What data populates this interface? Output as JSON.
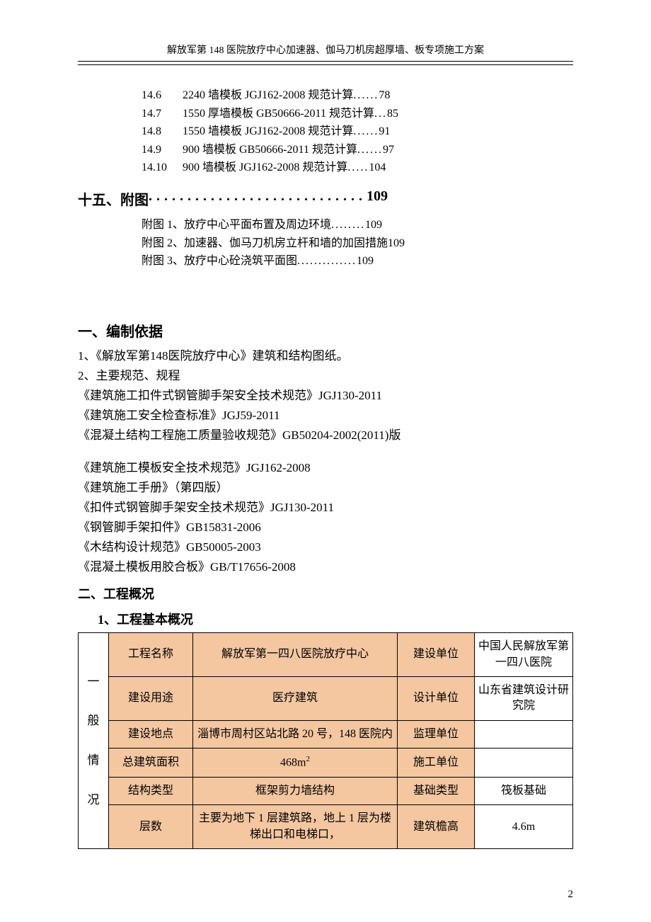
{
  "header": "解放军第 148 医院放疗中心加速器、伽马刀机房超厚墙、板专项施工方案",
  "toc_sub": [
    {
      "num": "14.6",
      "text": "2240 墙模板 JGJ162-2008 规范计算",
      "dots": "......",
      "page": "78"
    },
    {
      "num": "14.7",
      "text": "1550 厚墙模板 GB50666-2011 规范计算",
      "dots": "...",
      "page": "85"
    },
    {
      "num": "14.8",
      "text": "1550 墙模板 JGJ162-2008 规范计算",
      "dots": "......",
      "page": "91"
    },
    {
      "num": "14.9",
      "text": "900 墙模板 GB50666-2011 规范计算",
      "dots": "......",
      "page": "97"
    },
    {
      "num": "14.10",
      "text": "900 墙模板 JGJ162-2008 规范计算",
      "dots": ".....",
      "page": "104"
    }
  ],
  "toc_section": {
    "label": "十五、附图",
    "dots": "............................",
    "page": "109"
  },
  "toc_sub2": [
    {
      "text": "附图 1、放疗中心平面布置及周边环境",
      "dots": "........",
      "page": "109"
    },
    {
      "text": "附图 2、加速器、伽马刀机房立杆和墙的加固措施",
      "dots": "",
      "page": "109"
    },
    {
      "text": "附图 3、放疗中心砼浇筑平面图",
      "dots": "..............",
      "page": "109"
    }
  ],
  "section1_heading": "一、编制依据",
  "section1_lines": [
    "1、《解放军第148医院放疗中心》建筑和结构图纸。",
    "2、主要规范、规程",
    "《建筑施工扣件式钢管脚手架安全技术规范》JGJ130-2011",
    "《建筑施工安全检查标准》JGJ59-2011",
    "《混凝土结构工程施工质量验收规范》GB50204-2002(2011)版",
    "",
    "《建筑施工模板安全技术规范》JGJ162-2008",
    "《建筑施工手册》（第四版）",
    "《扣件式钢管脚手架安全技术规范》JGJ130-2011",
    "《钢管脚手架扣件》GB15831-2006",
    "《木结构设计规范》GB50005-2003",
    "《混凝土模板用胶合板》GB/T17656-2008"
  ],
  "section2_heading": "二、工程概况",
  "section2_sub": "1、工程基本概况",
  "table": {
    "colors": {
      "peach": "#f4c7a0",
      "white": "#ffffff",
      "border": "#000000"
    },
    "col_widths": [
      "34px",
      "110px",
      "auto",
      "100px",
      "130px"
    ],
    "rowhead_chars": [
      "一",
      "般",
      "情",
      "况"
    ],
    "rows": [
      {
        "c1": "工程名称",
        "c2": "解放军第一四八医院放疗中心",
        "c3": "建设单位",
        "c4": "中国人民解放军第一四八医院"
      },
      {
        "c1": "建设用途",
        "c2": "医疗建筑",
        "c3": "设计单位",
        "c4": "山东省建筑设计研究院"
      },
      {
        "c1": "建设地点",
        "c2": "淄博市周村区站北路 20 号，148 医院内",
        "c3": "监理单位",
        "c4": ""
      },
      {
        "c1": "总建筑面积",
        "c2_html": "468m<span class='sup'>2</span>",
        "c3": "施工单位",
        "c4": ""
      },
      {
        "c1": "结构类型",
        "c2": "框架剪力墙结构",
        "c3": "基础类型",
        "c4": "筏板基础"
      },
      {
        "c1": "层数",
        "c2": "主要为地下 1 层建筑路，地上 1 层为楼梯出口和电梯口，",
        "c3": "建筑檐高",
        "c4": "4.6m"
      }
    ]
  },
  "page_number": "2"
}
